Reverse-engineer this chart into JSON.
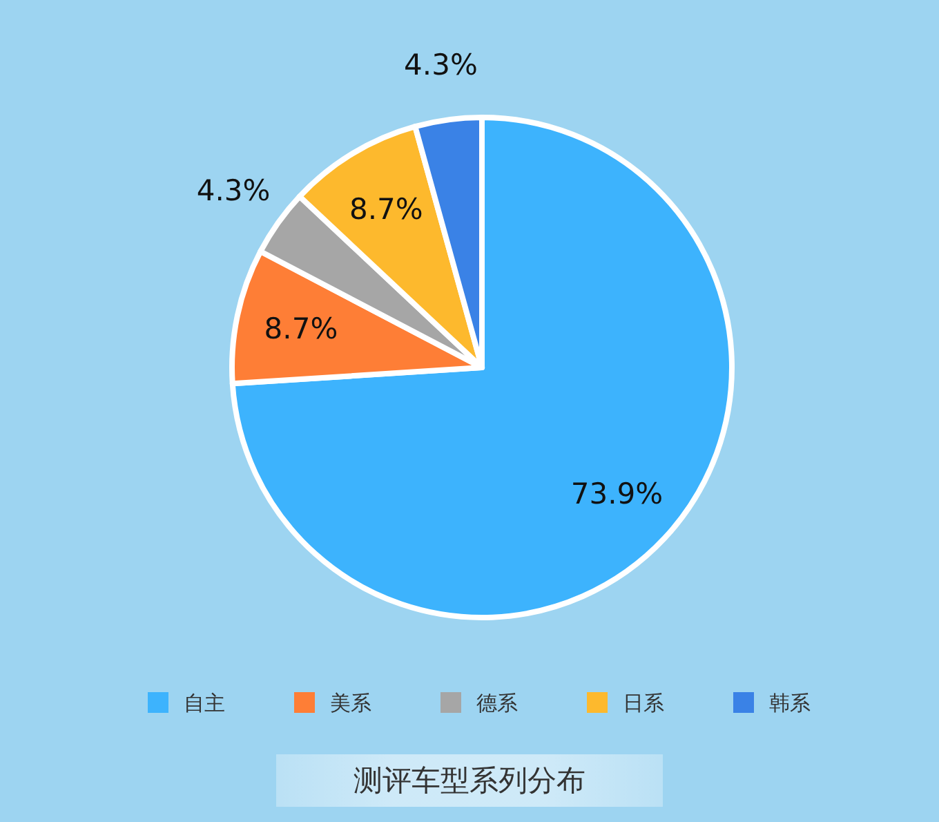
{
  "chart_data": {
    "type": "pie",
    "title": "测评车型系列分布",
    "categories": [
      "自主",
      "美系",
      "德系",
      "日系",
      "韩系"
    ],
    "values": [
      73.9,
      8.7,
      4.3,
      8.7,
      4.3
    ],
    "colors": [
      "#3db3fd",
      "#fe7e36",
      "#a6a6a6",
      "#fdb92d",
      "#3a82e6"
    ],
    "value_labels": [
      "73.9%",
      "8.7%",
      "4.3%",
      "8.7%",
      "4.3%"
    ],
    "legend": "bottom"
  }
}
